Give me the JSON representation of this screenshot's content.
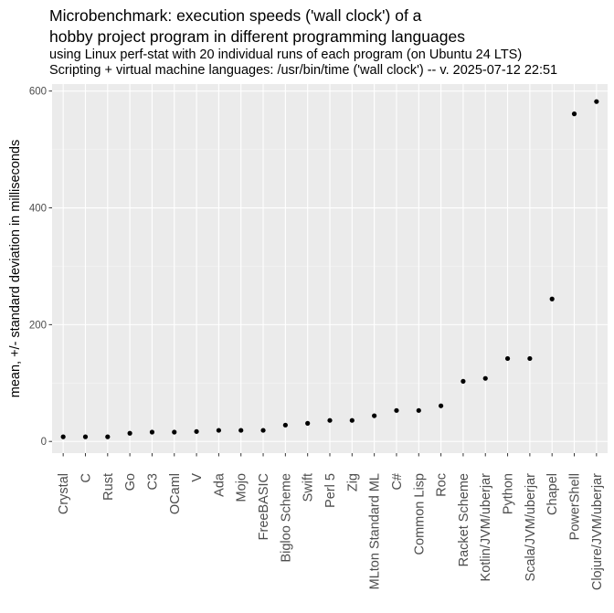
{
  "chart_data": {
    "type": "scatter",
    "title": "Microbenchmark: execution speeds ('wall clock') of a\nhobby project program in different programming languages",
    "subtitle_lines": [
      "using Linux perf-stat with 20 individual runs of each program (on Ubuntu 24 LTS)",
      "Scripting + virtual machine languages: /usr/bin/time ('wall clock') -- v. 2025-07-12 22:51"
    ],
    "xlabel": "",
    "ylabel": "mean, +/- standard deviation in milliseconds",
    "ylim": [
      -20,
      612
    ],
    "yticks": [
      0,
      200,
      400,
      600
    ],
    "grid": true,
    "categories": [
      "Crystal",
      "C",
      "Rust",
      "Go",
      "C3",
      "OCaml",
      "V",
      "Ada",
      "Mojo",
      "FreeBASIC",
      "Bigloo Scheme",
      "Swift",
      "Perl 5",
      "Zig",
      "MLton Standard ML",
      "C#",
      "Common Lisp",
      "Roc",
      "Racket Scheme",
      "Kotlin/JVM/uberjar",
      "Python",
      "Scala/JVM/uberjar",
      "Chapel",
      "PowerShell",
      "Clojure/JVM/uberjar"
    ],
    "values": [
      8,
      8,
      8,
      14,
      16,
      16,
      17,
      19,
      19,
      19,
      28,
      31,
      36,
      36,
      44,
      53,
      53,
      61,
      103,
      108,
      142,
      142,
      244,
      561,
      582
    ],
    "colors": {
      "panel": "#ebebeb",
      "grid_major": "#ffffff",
      "grid_minor": "#f5f5f5",
      "point": "#000000",
      "axis_text": "#4d4d4d",
      "tick": "#333333"
    }
  }
}
